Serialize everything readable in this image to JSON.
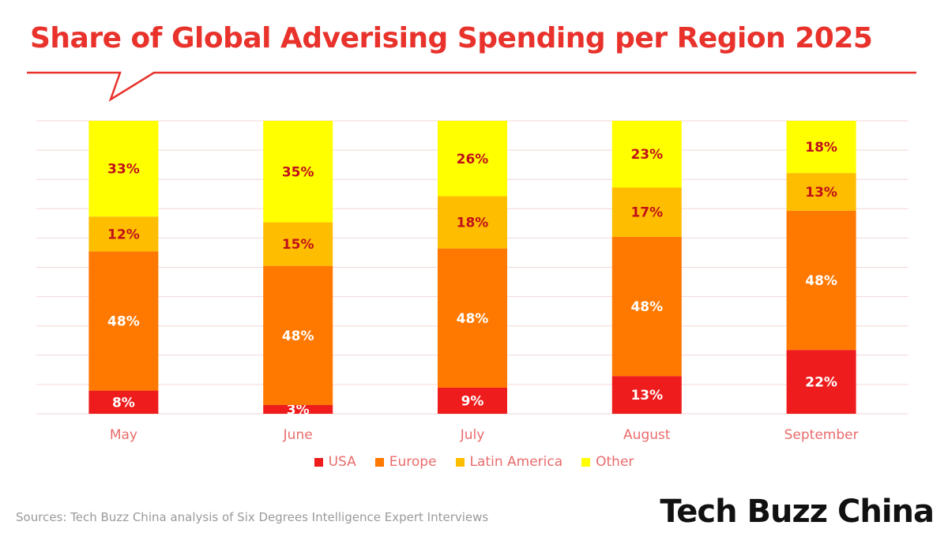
{
  "chart_data": {
    "type": "bar",
    "stacked": true,
    "title": "Share of Global Adverising Spending per Region 2025",
    "categories": [
      "May",
      "June",
      "July",
      "August",
      "September"
    ],
    "series": [
      {
        "name": "USA",
        "color": "#ee1c1c",
        "values": [
          8,
          3,
          9,
          13,
          22
        ],
        "labels": [
          "8%",
          "3%",
          "9%",
          "13%",
          "22%"
        ],
        "label_color": "#ffffff"
      },
      {
        "name": "Europe",
        "color": "#ff7800",
        "values": [
          48,
          48,
          48,
          48,
          48
        ],
        "labels": [
          "48%",
          "48%",
          "48%",
          "48%",
          "48%"
        ],
        "label_color": "#ffffff"
      },
      {
        "name": "Latin America",
        "color": "#ffbd00",
        "values": [
          12,
          15,
          18,
          17,
          13
        ],
        "labels": [
          "12%",
          "15%",
          "18%",
          "17%",
          "13%"
        ],
        "label_color": "#c0101a"
      },
      {
        "name": "Other",
        "color": "#ffff00",
        "values": [
          33,
          35,
          26,
          23,
          18
        ],
        "labels": [
          "33%",
          "35%",
          "26%",
          "23%",
          "18%"
        ],
        "label_color": "#c0101a"
      }
    ],
    "ylim": [
      0,
      100
    ],
    "grid": true,
    "legend_position": "bottom"
  },
  "accent_color": "#e8322b",
  "source": "Sources: Tech Buzz China analysis of Six Degrees Intelligence Expert Interviews",
  "logo_text": "Tech Buzz China"
}
